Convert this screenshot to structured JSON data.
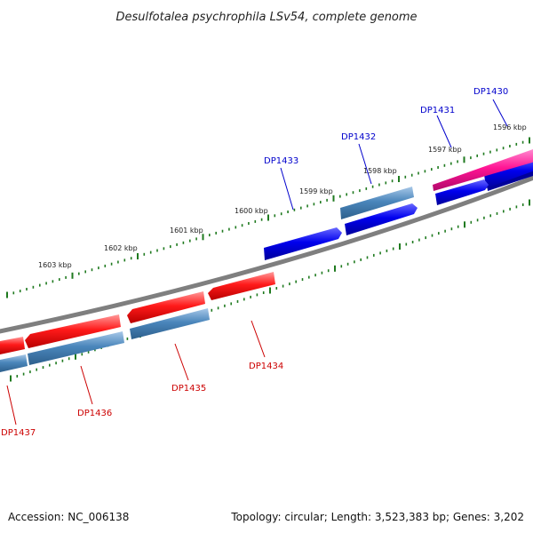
{
  "title": "Desulfotalea psychrophila LSv54, complete genome",
  "accession": "Accession: NC_006138",
  "summary": "Topology: circular; Length: 3,523,383 bp; Genes: 3,202",
  "colors": {
    "backbone": "#7f7f7f",
    "tick": "#1f7a1f",
    "upper_label": "#0000cc",
    "lower_label": "#cc0000",
    "blue_gene": "#0000ee",
    "steel_gene": "#4682b4",
    "pink_gene": "#ff1493",
    "red_gene": "#ff0000"
  },
  "upper_ticks": [
    "1596 kbp",
    "1597 kbp",
    "1598 kbp",
    "1599 kbp",
    "1600 kbp",
    "1601 kbp",
    "1602 kbp",
    "1603 kbp"
  ],
  "upper_labels": [
    "DP1430",
    "DP1431",
    "DP1432",
    "DP1433"
  ],
  "lower_labels": [
    "DP1434",
    "DP1435",
    "DP1436",
    "DP1437"
  ]
}
